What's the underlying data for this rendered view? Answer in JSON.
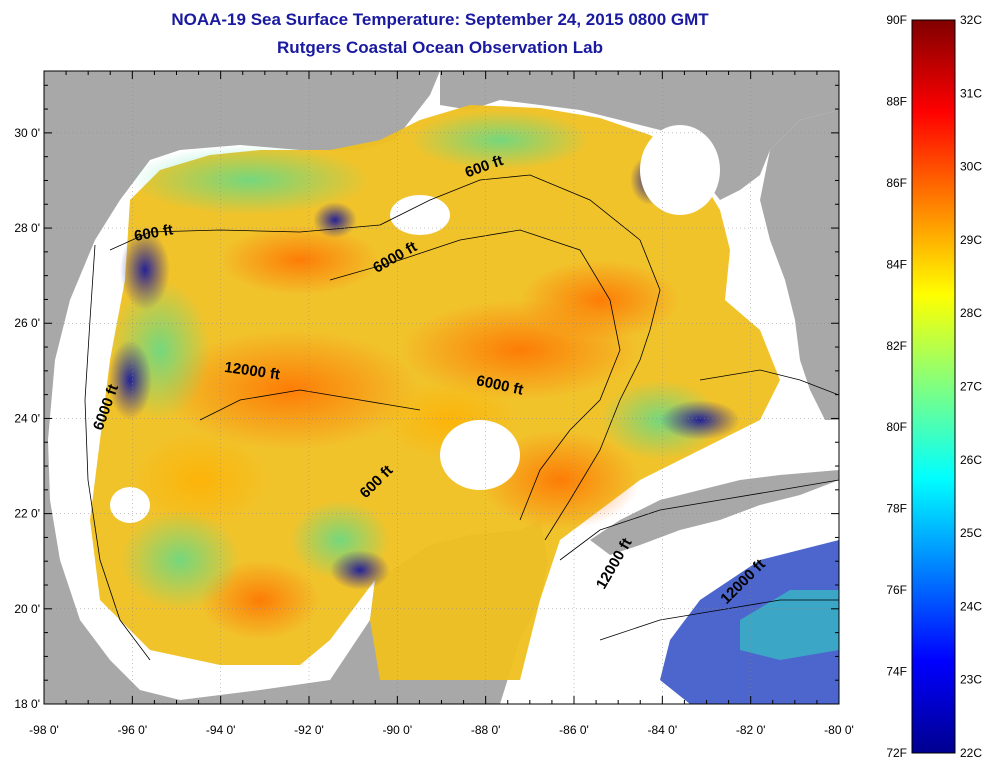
{
  "header": {
    "title": "NOAA-19 Sea Surface Temperature:  September 24, 2015 0800 GMT",
    "subtitle": "Rutgers Coastal Ocean Observation Lab"
  },
  "axes": {
    "lon_ticks": [
      -98,
      -96,
      -94,
      -92,
      -90,
      -88,
      -86,
      -84,
      -82,
      -80
    ],
    "lon_labels": [
      "-98 0'",
      "-96 0'",
      "-94 0'",
      "-92 0'",
      "-90 0'",
      "-88 0'",
      "-86 0'",
      "-84 0'",
      "-82 0'",
      "-80 0'"
    ],
    "lat_ticks": [
      18,
      20,
      22,
      24,
      26,
      28,
      30
    ],
    "lat_labels": [
      "18 0'",
      "20 0'",
      "22 0'",
      "24 0'",
      "26 0'",
      "28 0'",
      "30 0'"
    ],
    "lon_range": [
      -98,
      -80
    ],
    "lat_range": [
      18,
      31.3
    ]
  },
  "depth_labels": [
    {
      "text": "600 ft",
      "lon": -88.0,
      "lat": 29.2,
      "angle": -20
    },
    {
      "text": "600 ft",
      "lon": -95.5,
      "lat": 27.8,
      "angle": -10
    },
    {
      "text": "6000 ft",
      "lon": -90.0,
      "lat": 27.3,
      "angle": -30
    },
    {
      "text": "12000 ft",
      "lon": -93.3,
      "lat": 24.9,
      "angle": 8
    },
    {
      "text": "6000 ft",
      "lon": -96.5,
      "lat": 24.2,
      "angle": -70
    },
    {
      "text": "6000 ft",
      "lon": -87.7,
      "lat": 24.6,
      "angle": 12
    },
    {
      "text": "600 ft",
      "lon": -90.4,
      "lat": 22.6,
      "angle": -45
    },
    {
      "text": "12000 ft",
      "lon": -85.0,
      "lat": 20.9,
      "angle": -60
    },
    {
      "text": "12000 ft",
      "lon": -82.1,
      "lat": 20.5,
      "angle": -45
    }
  ],
  "colorbar": {
    "f_labels": [
      "90F",
      "88F",
      "86F",
      "84F",
      "82F",
      "80F",
      "78F",
      "76F",
      "74F",
      "72F"
    ],
    "c_labels": [
      "32C",
      "31C",
      "30C",
      "29C",
      "28C",
      "27C",
      "26C",
      "25C",
      "24C",
      "23C",
      "22C"
    ],
    "f_range": [
      72,
      90
    ],
    "c_range": [
      22,
      32
    ],
    "colors": [
      "#00008f",
      "#0000ff",
      "#0080ff",
      "#00ffff",
      "#80ff80",
      "#ffff00",
      "#ff8000",
      "#ff0000",
      "#800000"
    ]
  },
  "colors": {
    "land": "#a8a8a8",
    "no_data": "#ffffff",
    "contour": "#000000"
  }
}
